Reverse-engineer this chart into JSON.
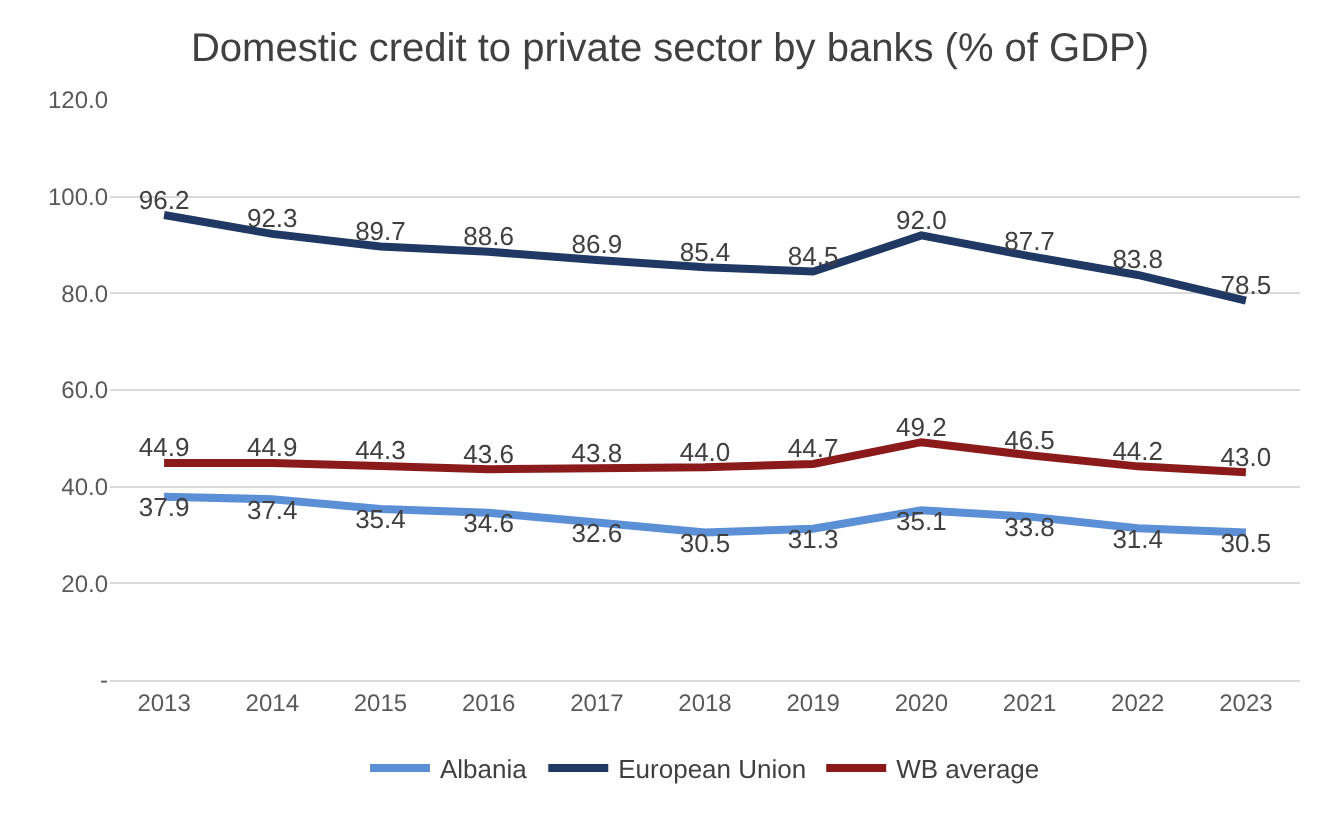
{
  "chart_data": {
    "type": "line",
    "title": "Domestic credit to private sector by banks (% of GDP)",
    "categories": [
      "2013",
      "2014",
      "2015",
      "2016",
      "2017",
      "2018",
      "2019",
      "2020",
      "2021",
      "2022",
      "2023"
    ],
    "series": [
      {
        "name": "Albania",
        "color": "#5b8fd6",
        "values": [
          37.9,
          37.4,
          35.4,
          34.6,
          32.6,
          30.5,
          31.3,
          35.1,
          33.8,
          31.4,
          30.5
        ],
        "value_labels": [
          "37.9",
          "37.4",
          "35.4",
          "34.6",
          "32.6",
          "30.5",
          "31.3",
          "35.1",
          "33.8",
          "31.4",
          "30.5"
        ]
      },
      {
        "name": "European Union",
        "color": "#1f3864",
        "values": [
          96.2,
          92.3,
          89.7,
          88.6,
          86.9,
          85.4,
          84.5,
          92.0,
          87.7,
          83.8,
          78.5
        ],
        "value_labels": [
          "96.2",
          "92.3",
          "89.7",
          "88.6",
          "86.9",
          "85.4",
          "84.5",
          "92.0",
          "87.7",
          "83.8",
          "78.5"
        ]
      },
      {
        "name": "WB average",
        "color": "#8b1a1a",
        "values": [
          44.9,
          44.9,
          44.3,
          43.6,
          43.8,
          44.0,
          44.7,
          49.2,
          46.5,
          44.2,
          43.0
        ],
        "value_labels": [
          "44.9",
          "44.9",
          "44.3",
          "43.6",
          "43.8",
          "44.0",
          "44.7",
          "49.2",
          "46.5",
          "44.2",
          "43.0"
        ]
      }
    ],
    "ylim": [
      0,
      120
    ],
    "yticks": [
      {
        "value": 0,
        "label": "-"
      },
      {
        "value": 20,
        "label": "20.0"
      },
      {
        "value": 40,
        "label": "40.0"
      },
      {
        "value": 60,
        "label": "60.0"
      },
      {
        "value": 80,
        "label": "80.0"
      },
      {
        "value": 100,
        "label": "100.0"
      },
      {
        "value": 120,
        "label": "120.0"
      }
    ],
    "grid": "y",
    "legend": "bottom",
    "marker": "none",
    "line_style": "solid"
  }
}
